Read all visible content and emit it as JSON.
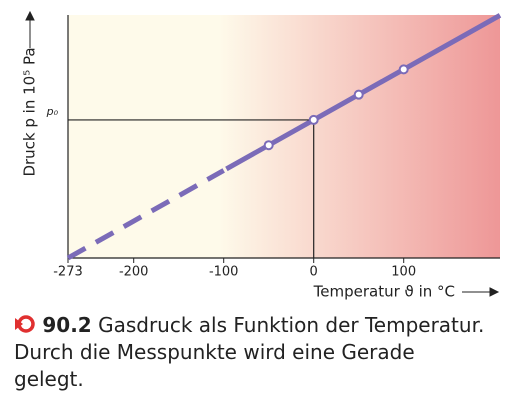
{
  "chart_data": {
    "type": "line",
    "xlim": [
      -273,
      207
    ],
    "xticks": [
      -273,
      -200,
      -100,
      0,
      100
    ],
    "ylim": [
      0,
      1.76
    ],
    "yticks": [
      {
        "value": 1,
        "label": "p₀"
      }
    ],
    "x_label": "Temperatur ϑ in °C",
    "y_label": "Druck p in 10⁵ Pa",
    "line_color": "#7b6bb8",
    "background": [
      "#fefaea",
      "#ee9797"
    ],
    "series": [
      {
        "x": [
          -273,
          -100
        ],
        "values": [
          0,
          0.634
        ],
        "dashed": true
      },
      {
        "x": [
          -97,
          207
        ],
        "values": [
          0.645,
          1.758
        ],
        "dashed": false
      }
    ],
    "points": {
      "x": [
        -50,
        0,
        50,
        100
      ],
      "values": [
        0.817,
        1,
        1.183,
        1.366
      ]
    }
  },
  "caption": {
    "number": "90.2",
    "lines": [
      "Gasdruck als Funktion der Temperatur.",
      "Durch die Messpunkte wird eine Gerade",
      "gelegt."
    ]
  }
}
